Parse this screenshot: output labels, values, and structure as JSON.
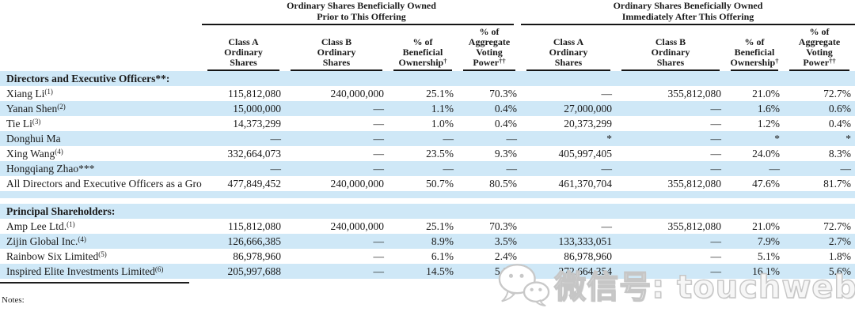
{
  "table": {
    "groups": [
      {
        "line1": "Ordinary Shares Beneficially Owned",
        "line2": "Prior to This Offering"
      },
      {
        "line1": "Ordinary Shares Beneficially Owned",
        "line2": "Immediately After This Offering"
      }
    ],
    "columns": [
      {
        "key": "class-a-ordinary-shares",
        "lines": [
          "Class A",
          "Ordinary",
          "Shares"
        ],
        "sup": ""
      },
      {
        "key": "class-b-ordinary-shares",
        "lines": [
          "Class B",
          "Ordinary",
          "Shares"
        ],
        "sup": ""
      },
      {
        "key": "pct-beneficial-ownership",
        "lines": [
          "% of",
          "Beneficial",
          "Ownership"
        ],
        "sup": "†"
      },
      {
        "key": "pct-aggregate-voting-power",
        "lines": [
          "% of",
          "Aggregate",
          "Voting",
          "Power"
        ],
        "sup": "††"
      }
    ],
    "rows": [
      {
        "section": true,
        "shade": true,
        "label": "Directors and Executive Officers**:"
      },
      {
        "shade": false,
        "label": "Xiang Li",
        "sup": "(1)",
        "values": [
          "115,812,080",
          "240,000,000",
          "25.1%",
          "70.3%",
          "—",
          "355,812,080",
          "21.0%",
          "72.7%"
        ]
      },
      {
        "shade": true,
        "label": "Yanan Shen",
        "sup": "(2)",
        "values": [
          "15,000,000",
          "—",
          "1.1%",
          "0.4%",
          "27,000,000",
          "—",
          "1.6%",
          "0.6%"
        ]
      },
      {
        "shade": false,
        "label": "Tie Li",
        "sup": "(3)",
        "values": [
          "14,373,299",
          "—",
          "1.0%",
          "0.4%",
          "20,373,299",
          "—",
          "1.2%",
          "0.4%"
        ]
      },
      {
        "shade": true,
        "label": "Donghui Ma",
        "sup": "",
        "values": [
          "—",
          "—",
          "—",
          "—",
          "*",
          "—",
          "*",
          "*"
        ]
      },
      {
        "shade": false,
        "label": "Xing Wang",
        "sup": "(4)",
        "values": [
          "332,664,073",
          "—",
          "23.5%",
          "9.3%",
          "405,997,405",
          "—",
          "24.0%",
          "8.3%"
        ]
      },
      {
        "shade": true,
        "label": "Hongqiang Zhao***",
        "sup": "",
        "values": [
          "—",
          "—",
          "—",
          "—",
          "—",
          "—",
          "—",
          "—"
        ]
      },
      {
        "shade": false,
        "label": "All Directors and Executive Officers as a Group",
        "sup": "",
        "values": [
          "477,849,452",
          "240,000,000",
          "50.7%",
          "80.5%",
          "461,370,704",
          "355,812,080",
          "47.6%",
          "81.7%"
        ]
      },
      {
        "type": "spacer"
      },
      {
        "section": true,
        "shade": true,
        "label": "Principal Shareholders:"
      },
      {
        "shade": false,
        "label": "Amp Lee Ltd.",
        "sup": "(1)",
        "values": [
          "115,812,080",
          "240,000,000",
          "25.1%",
          "70.3%",
          "—",
          "355,812,080",
          "21.0%",
          "72.7%"
        ]
      },
      {
        "shade": true,
        "label": "Zijin Global Inc.",
        "sup": "(4)",
        "values": [
          "126,666,385",
          "—",
          "8.9%",
          "3.5%",
          "133,333,051",
          "—",
          "7.9%",
          "2.7%"
        ]
      },
      {
        "shade": false,
        "label": "Rainbow Six Limited",
        "sup": "(5)",
        "values": [
          "86,978,960",
          "—",
          "6.1%",
          "2.4%",
          "86,978,960",
          "—",
          "5.1%",
          "1.8%"
        ]
      },
      {
        "shade": true,
        "label": "Inspired Elite Investments Limited",
        "sup": "(6)",
        "values": [
          "205,997,688",
          "—",
          "14.5%",
          "5.8%",
          "272,664,354",
          "—",
          "16.1%",
          "5.6%"
        ]
      }
    ]
  },
  "notes_label": "Notes:",
  "watermark": {
    "text": "微信号: touchweb",
    "icon": "wechat-icon"
  },
  "colors": {
    "row_shade": "#cfe8f7",
    "rule": "#151515",
    "text": "#1a1a1a",
    "watermark_gray": "#c6c6c6"
  }
}
